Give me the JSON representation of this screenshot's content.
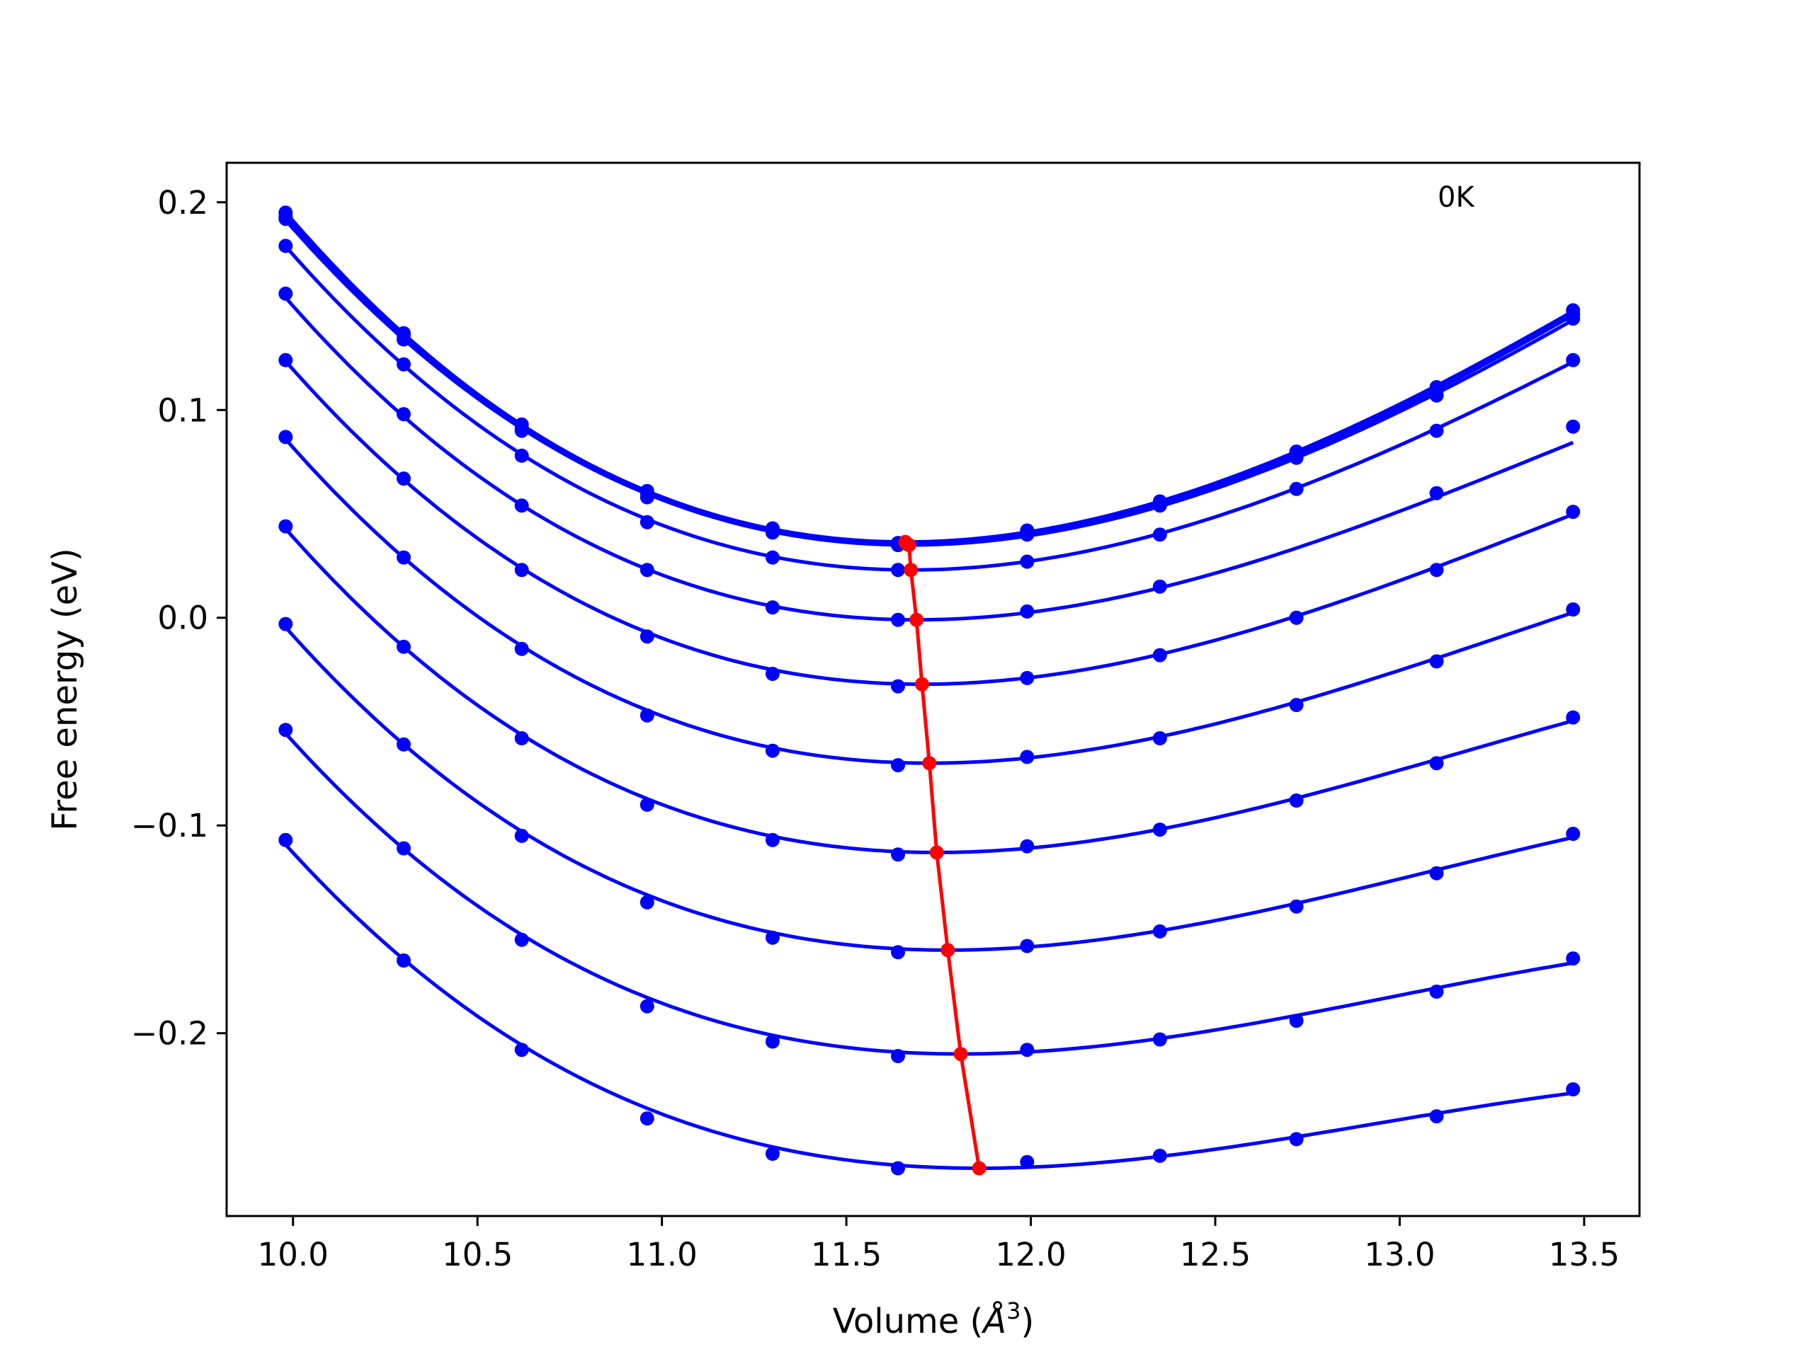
{
  "chart_data": {
    "type": "line",
    "title": "",
    "xlabel": "Volume (Å³)",
    "xlabel_parts": {
      "prefix": "Volume (",
      "symbol": "Å",
      "exponent": "3",
      "suffix": ")"
    },
    "ylabel": "Free energy (eV)",
    "annotation": "0K",
    "annotation_placement": "top-right",
    "xlim": [
      9.82,
      13.65
    ],
    "ylim": [
      -0.288,
      0.219
    ],
    "xticks": [
      10.0,
      10.5,
      11.0,
      11.5,
      12.0,
      12.5,
      13.0,
      13.5
    ],
    "xtick_labels": [
      "10.0",
      "10.5",
      "11.0",
      "11.5",
      "12.0",
      "12.5",
      "13.0",
      "13.5"
    ],
    "yticks": [
      0.2,
      0.1,
      0.0,
      -0.1,
      -0.2
    ],
    "ytick_labels": [
      "0.2",
      "0.1",
      "0.0",
      "−0.1",
      "−0.2"
    ],
    "grid": false,
    "legend": "none",
    "colors": {
      "curves": "#0000ff",
      "minima": "#ff0000",
      "frame": "#000000"
    },
    "x": [
      9.98,
      10.3,
      10.62,
      10.96,
      11.3,
      11.64,
      11.99,
      12.35,
      12.72,
      13.1,
      13.47
    ],
    "series": [
      {
        "values": [
          0.195,
          0.137,
          0.093,
          0.061,
          0.043,
          0.036,
          0.042,
          0.056,
          0.08,
          0.111,
          0.148
        ],
        "min": [
          11.66,
          0.0365
        ]
      },
      {
        "values": [
          0.193,
          0.136,
          0.091,
          0.06,
          0.042,
          0.035,
          0.041,
          0.055,
          0.079,
          0.109,
          0.146
        ],
        "min": [
          11.665,
          0.0355
        ]
      },
      {
        "values": [
          0.192,
          0.134,
          0.09,
          0.058,
          0.041,
          0.035,
          0.04,
          0.054,
          0.077,
          0.107,
          0.144
        ],
        "min": [
          11.67,
          0.035
        ]
      },
      {
        "values": [
          0.179,
          0.122,
          0.078,
          0.046,
          0.029,
          0.023,
          0.027,
          0.04,
          0.062,
          0.09,
          0.124
        ],
        "min": [
          11.675,
          0.023
        ]
      },
      {
        "values": [
          0.156,
          0.098,
          0.054,
          0.023,
          0.005,
          -0.001,
          0.003,
          0.015,
          0.0,
          0.06,
          0.092
        ],
        "min": [
          11.69,
          -0.001
        ]
      },
      {
        "values": [
          0.124,
          0.067,
          0.023,
          -0.009,
          -0.027,
          -0.033,
          -0.029,
          -0.018,
          0.0,
          0.023,
          0.051
        ],
        "min": [
          11.705,
          -0.032
        ]
      },
      {
        "values": [
          0.087,
          0.029,
          -0.015,
          -0.047,
          -0.064,
          -0.071,
          -0.067,
          -0.058,
          -0.042,
          -0.021,
          0.004
        ],
        "min": [
          11.725,
          -0.07
        ]
      },
      {
        "values": [
          0.044,
          -0.014,
          -0.058,
          -0.09,
          -0.107,
          -0.114,
          -0.11,
          -0.102,
          -0.088,
          -0.07,
          -0.048
        ],
        "min": [
          11.745,
          -0.113
        ]
      },
      {
        "values": [
          -0.003,
          -0.061,
          -0.105,
          -0.137,
          -0.154,
          -0.161,
          -0.158,
          -0.151,
          -0.139,
          -0.123,
          -0.104
        ],
        "min": [
          11.775,
          -0.16
        ]
      },
      {
        "values": [
          -0.054,
          -0.111,
          -0.155,
          -0.187,
          -0.204,
          -0.211,
          -0.208,
          -0.203,
          -0.194,
          -0.18,
          -0.164
        ],
        "min": [
          11.81,
          -0.21
        ]
      },
      {
        "values": [
          -0.107,
          -0.165,
          -0.208,
          -0.241,
          -0.258,
          -0.265,
          -0.262,
          -0.259,
          -0.251,
          -0.24,
          -0.227
        ],
        "min": [
          11.86,
          -0.265
        ]
      }
    ]
  }
}
